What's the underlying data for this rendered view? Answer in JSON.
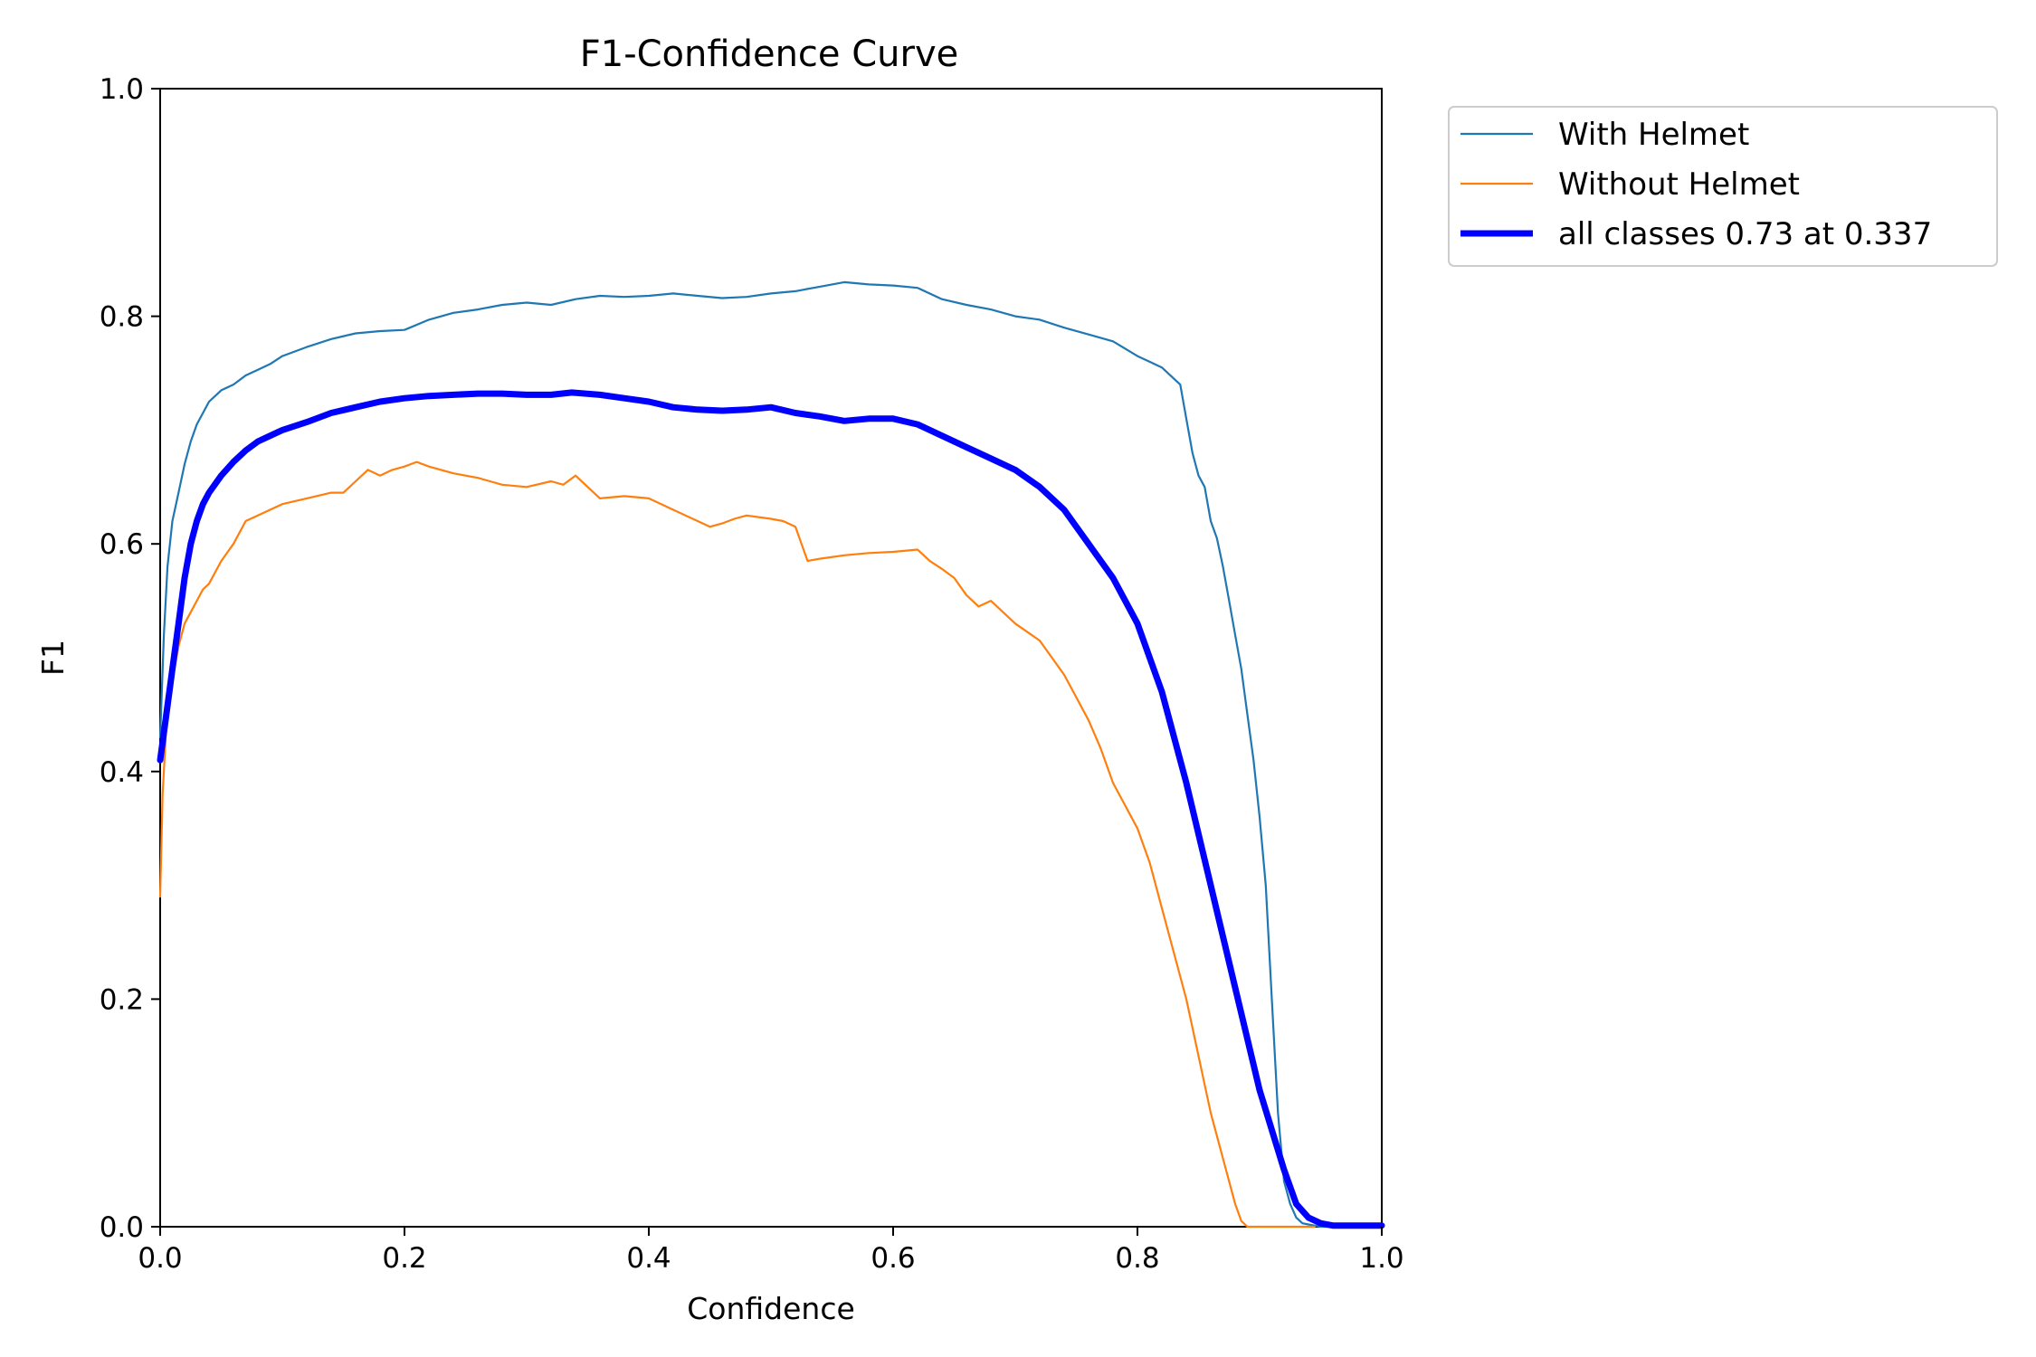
{
  "chart_data": {
    "type": "line",
    "title": "F1-Confidence Curve",
    "xlabel": "Confidence",
    "ylabel": "F1",
    "xlim": [
      0,
      1
    ],
    "ylim": [
      0,
      1
    ],
    "xticks": [
      "0.0",
      "0.2",
      "0.4",
      "0.6",
      "0.8",
      "1.0"
    ],
    "yticks": [
      "0.0",
      "0.2",
      "0.4",
      "0.6",
      "0.8",
      "1.0"
    ],
    "grid": false,
    "legend_position": "outside-top-right",
    "series": [
      {
        "name": "With Helmet",
        "color": "#1f77b4",
        "style": "thin",
        "x": [
          0.0,
          0.003,
          0.006,
          0.01,
          0.015,
          0.02,
          0.025,
          0.03,
          0.035,
          0.04,
          0.045,
          0.05,
          0.06,
          0.07,
          0.08,
          0.09,
          0.1,
          0.12,
          0.14,
          0.16,
          0.18,
          0.2,
          0.22,
          0.24,
          0.26,
          0.28,
          0.3,
          0.32,
          0.34,
          0.36,
          0.38,
          0.4,
          0.42,
          0.44,
          0.46,
          0.48,
          0.5,
          0.52,
          0.54,
          0.56,
          0.58,
          0.6,
          0.62,
          0.64,
          0.66,
          0.68,
          0.7,
          0.72,
          0.74,
          0.76,
          0.78,
          0.8,
          0.81,
          0.82,
          0.83,
          0.835,
          0.84,
          0.845,
          0.85,
          0.855,
          0.86,
          0.865,
          0.87,
          0.875,
          0.88,
          0.885,
          0.89,
          0.895,
          0.9,
          0.905,
          0.91,
          0.915,
          0.92,
          0.925,
          0.93,
          0.935,
          0.94,
          0.945,
          0.95,
          0.96,
          1.0
        ],
        "values": [
          0.43,
          0.52,
          0.58,
          0.62,
          0.645,
          0.67,
          0.69,
          0.705,
          0.715,
          0.725,
          0.73,
          0.735,
          0.74,
          0.748,
          0.753,
          0.758,
          0.765,
          0.773,
          0.78,
          0.785,
          0.787,
          0.788,
          0.797,
          0.803,
          0.806,
          0.81,
          0.812,
          0.81,
          0.815,
          0.818,
          0.817,
          0.818,
          0.82,
          0.818,
          0.816,
          0.817,
          0.82,
          0.822,
          0.826,
          0.83,
          0.828,
          0.827,
          0.825,
          0.815,
          0.81,
          0.806,
          0.8,
          0.797,
          0.79,
          0.784,
          0.778,
          0.765,
          0.76,
          0.755,
          0.745,
          0.74,
          0.71,
          0.68,
          0.66,
          0.65,
          0.62,
          0.605,
          0.58,
          0.55,
          0.52,
          0.49,
          0.45,
          0.41,
          0.36,
          0.3,
          0.2,
          0.1,
          0.04,
          0.02,
          0.008,
          0.003,
          0.002,
          0.001,
          0.0,
          0.0,
          0.0
        ]
      },
      {
        "name": "Without Helmet",
        "color": "#ff7f0e",
        "style": "thin",
        "x": [
          0.0,
          0.002,
          0.005,
          0.01,
          0.015,
          0.02,
          0.025,
          0.03,
          0.035,
          0.04,
          0.05,
          0.06,
          0.07,
          0.08,
          0.09,
          0.1,
          0.12,
          0.14,
          0.15,
          0.16,
          0.17,
          0.18,
          0.19,
          0.2,
          0.21,
          0.22,
          0.24,
          0.26,
          0.27,
          0.28,
          0.3,
          0.32,
          0.33,
          0.34,
          0.36,
          0.38,
          0.4,
          0.42,
          0.44,
          0.45,
          0.46,
          0.47,
          0.48,
          0.5,
          0.51,
          0.52,
          0.53,
          0.54,
          0.56,
          0.58,
          0.6,
          0.62,
          0.63,
          0.64,
          0.65,
          0.66,
          0.67,
          0.68,
          0.69,
          0.7,
          0.72,
          0.73,
          0.74,
          0.75,
          0.76,
          0.77,
          0.78,
          0.79,
          0.8,
          0.81,
          0.82,
          0.83,
          0.84,
          0.85,
          0.86,
          0.87,
          0.88,
          0.885,
          0.89,
          0.9,
          0.92,
          0.94,
          0.945
        ],
        "values": [
          0.29,
          0.38,
          0.44,
          0.48,
          0.51,
          0.53,
          0.54,
          0.55,
          0.56,
          0.565,
          0.585,
          0.6,
          0.62,
          0.625,
          0.63,
          0.635,
          0.64,
          0.645,
          0.645,
          0.655,
          0.665,
          0.66,
          0.665,
          0.668,
          0.672,
          0.668,
          0.662,
          0.658,
          0.655,
          0.652,
          0.65,
          0.655,
          0.652,
          0.66,
          0.64,
          0.642,
          0.64,
          0.63,
          0.62,
          0.615,
          0.618,
          0.622,
          0.625,
          0.622,
          0.62,
          0.615,
          0.585,
          0.587,
          0.59,
          0.592,
          0.593,
          0.595,
          0.585,
          0.578,
          0.57,
          0.555,
          0.545,
          0.55,
          0.54,
          0.53,
          0.515,
          0.5,
          0.485,
          0.465,
          0.445,
          0.42,
          0.39,
          0.37,
          0.35,
          0.32,
          0.28,
          0.24,
          0.2,
          0.15,
          0.1,
          0.06,
          0.02,
          0.005,
          0.0,
          0.0,
          0.0,
          0.0,
          0.0
        ]
      },
      {
        "name": "all classes 0.73 at 0.337",
        "color": "#0000ff",
        "style": "thick",
        "x": [
          0.0,
          0.005,
          0.01,
          0.015,
          0.02,
          0.025,
          0.03,
          0.035,
          0.04,
          0.05,
          0.06,
          0.07,
          0.08,
          0.09,
          0.1,
          0.12,
          0.14,
          0.16,
          0.18,
          0.2,
          0.22,
          0.24,
          0.26,
          0.28,
          0.3,
          0.32,
          0.337,
          0.36,
          0.38,
          0.4,
          0.42,
          0.44,
          0.46,
          0.48,
          0.5,
          0.52,
          0.54,
          0.56,
          0.58,
          0.6,
          0.62,
          0.64,
          0.66,
          0.68,
          0.7,
          0.72,
          0.74,
          0.76,
          0.78,
          0.8,
          0.82,
          0.84,
          0.86,
          0.88,
          0.9,
          0.92,
          0.93,
          0.94,
          0.95,
          0.96,
          0.97,
          1.0
        ],
        "values": [
          0.41,
          0.45,
          0.49,
          0.53,
          0.57,
          0.6,
          0.62,
          0.635,
          0.645,
          0.66,
          0.672,
          0.682,
          0.69,
          0.695,
          0.7,
          0.707,
          0.715,
          0.72,
          0.725,
          0.728,
          0.73,
          0.731,
          0.732,
          0.732,
          0.731,
          0.731,
          0.733,
          0.731,
          0.728,
          0.725,
          0.72,
          0.718,
          0.717,
          0.718,
          0.72,
          0.715,
          0.712,
          0.708,
          0.71,
          0.71,
          0.705,
          0.695,
          0.685,
          0.675,
          0.665,
          0.65,
          0.63,
          0.6,
          0.57,
          0.53,
          0.47,
          0.39,
          0.3,
          0.21,
          0.12,
          0.05,
          0.02,
          0.008,
          0.003,
          0.001,
          0.001,
          0.001
        ]
      }
    ]
  }
}
